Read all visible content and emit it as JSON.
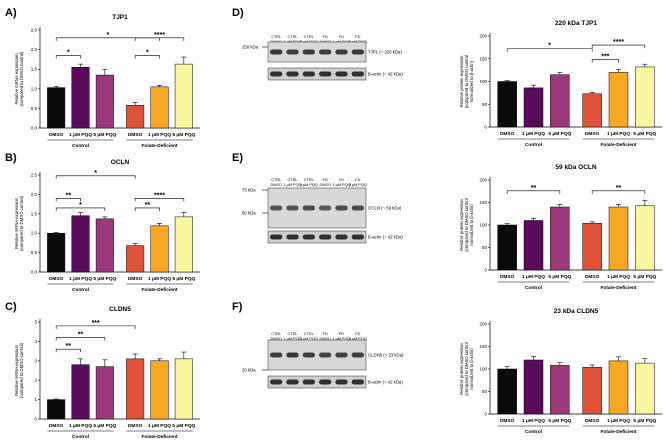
{
  "figure": {
    "panel_letters": [
      "A)",
      "B)",
      "C)",
      "D)",
      "E)",
      "F)"
    ],
    "categories": [
      "DMSO",
      "1 μM PQQ",
      "5 μM PQQ",
      "DMSO",
      "1 μM PQQ",
      "5 μM PQQ"
    ],
    "groups": [
      "Control",
      "Folate-Deficient"
    ],
    "colors": [
      "#0a0a0a",
      "#5a0a5a",
      "#9a3a7a",
      "#e0523a",
      "#f7a823",
      "#fbf7a0"
    ],
    "mrna_ylabel": [
      "Relative mRNA expression",
      "(compared to DMSO control)"
    ],
    "protein_ylabel": [
      "Relative protein expression",
      "(compared to DMSO control",
      "normalized to β-actin)"
    ]
  },
  "blots": {
    "lane_labels": [
      [
        "CTRL",
        "DMSO"
      ],
      [
        "CTRL",
        "1 μM PQQ"
      ],
      [
        "CTRL",
        "5 μM PQQ"
      ],
      [
        "FD",
        "DMSO"
      ],
      [
        "FD",
        "1 μM PQQ"
      ],
      [
        "FD",
        "5 μM PQQ"
      ]
    ],
    "D": {
      "marker": "250 kDa",
      "band": "TJP1 (~ 220 kDa)",
      "actin": "B-actin (~ 42 kDa)"
    },
    "E": {
      "marker_top": "75 kDa",
      "marker_bottom": "50 kDa",
      "band": "OCLN (~ 59 kDa)",
      "actin": "B-actin (~ 42 kDa)"
    },
    "F": {
      "marker": "20 kDa",
      "band": "CLDN5 (~ 23 kDa)",
      "actin": "B-actin (~ 42 kDa)"
    }
  },
  "chart_data": [
    {
      "id": "A",
      "type": "bar",
      "title": "TJP1",
      "ylim": [
        0,
        2.5
      ],
      "yticks": [
        0.0,
        0.5,
        1.0,
        1.5,
        2.0,
        2.5
      ],
      "values": [
        1.03,
        1.55,
        1.35,
        0.58,
        1.05,
        1.63
      ],
      "errors": [
        0.03,
        0.08,
        0.15,
        0.07,
        0.04,
        0.18
      ],
      "annotations": [
        "*",
        "*",
        "*",
        "****"
      ]
    },
    {
      "id": "B",
      "type": "bar",
      "title": "OCLN",
      "ylim": [
        0,
        2.5
      ],
      "yticks": [
        0.0,
        0.5,
        1.0,
        1.5,
        2.0,
        2.5
      ],
      "values": [
        1.0,
        1.45,
        1.37,
        0.68,
        1.19,
        1.42
      ],
      "errors": [
        0.02,
        0.08,
        0.05,
        0.05,
        0.06,
        0.12
      ],
      "annotations": [
        "*",
        "**",
        "*",
        "**",
        "****"
      ]
    },
    {
      "id": "C",
      "type": "bar",
      "title": "CLDN5",
      "ylim": [
        0,
        5
      ],
      "yticks": [
        0,
        1,
        2,
        3,
        4,
        5
      ],
      "values": [
        1.0,
        2.8,
        2.7,
        3.1,
        3.0,
        3.1
      ],
      "errors": [
        0.03,
        0.3,
        0.35,
        0.25,
        0.1,
        0.35
      ],
      "annotations": [
        "**",
        "**",
        "***"
      ]
    },
    {
      "id": "D",
      "type": "bar",
      "title": "220 kDa TJP1",
      "ylim": [
        0,
        200
      ],
      "yticks": [
        0,
        50,
        100,
        150,
        200
      ],
      "values": [
        100,
        86,
        115,
        73,
        120,
        132
      ],
      "errors": [
        2,
        6,
        5,
        3,
        7,
        6
      ],
      "annotations": [
        "*",
        "***",
        "****"
      ]
    },
    {
      "id": "E",
      "type": "bar",
      "title": "59 kDa OCLN",
      "ylim": [
        0,
        200
      ],
      "yticks": [
        0,
        50,
        100,
        150,
        200
      ],
      "values": [
        100,
        110,
        140,
        104,
        140,
        143
      ],
      "errors": [
        3,
        5,
        6,
        3,
        6,
        12
      ],
      "annotations": [
        "**",
        "**"
      ]
    },
    {
      "id": "F",
      "type": "bar",
      "title": "23 kDa CLDN5",
      "ylim": [
        0,
        200
      ],
      "yticks": [
        0,
        50,
        100,
        150,
        200
      ],
      "values": [
        100,
        120,
        108,
        104,
        118,
        113
      ],
      "errors": [
        5,
        8,
        6,
        5,
        9,
        10
      ],
      "annotations": []
    }
  ]
}
